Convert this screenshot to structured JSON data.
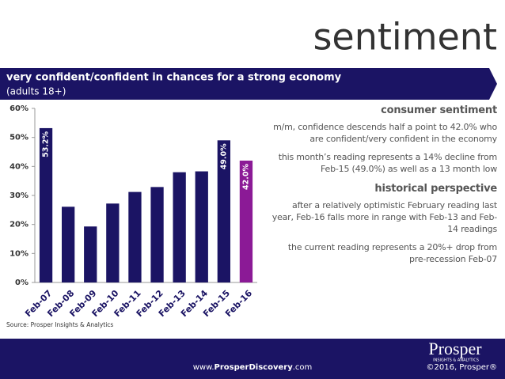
{
  "header": {
    "title": "sentiment"
  },
  "banner": {
    "title": "very confident/confident in chances for a strong economy",
    "subtitle": "(adults 18+)"
  },
  "chart_data": {
    "type": "bar",
    "categories": [
      "Feb-07",
      "Feb-08",
      "Feb-09",
      "Feb-10",
      "Feb-11",
      "Feb-12",
      "Feb-13",
      "Feb-14",
      "Feb-15",
      "Feb-16"
    ],
    "values": [
      53.2,
      26.1,
      19.3,
      27.2,
      31.2,
      32.9,
      38.0,
      38.3,
      49.0,
      42.0
    ],
    "value_labels": [
      "53.2%",
      null,
      null,
      null,
      null,
      null,
      null,
      null,
      "49.0%",
      "42.0%"
    ],
    "colors": [
      "#1b1464",
      "#1b1464",
      "#1b1464",
      "#1b1464",
      "#1b1464",
      "#1b1464",
      "#1b1464",
      "#1b1464",
      "#1b1464",
      "#8b1a96"
    ],
    "ylim": [
      0,
      60
    ],
    "yticks": [
      {
        "value": 0,
        "label": "0%"
      },
      {
        "value": 10,
        "label": "10%"
      },
      {
        "value": 20,
        "label": "20%"
      },
      {
        "value": 30,
        "label": "30%"
      },
      {
        "value": 40,
        "label": "40%"
      },
      {
        "value": 50,
        "label": "50%"
      },
      {
        "value": 60,
        "label": "60%"
      }
    ],
    "grid": false
  },
  "source": "Source: Prosper Insights & Analytics",
  "panel": {
    "sections": [
      {
        "heading": "consumer sentiment",
        "paragraphs": [
          "m/m, confidence descends half a point to 42.0% who are confident/very confident in the economy",
          "this month’s reading represents a 14% decline from Feb-15 (49.0%) as well as a 13 month low"
        ]
      },
      {
        "heading": "historical perspective",
        "paragraphs": [
          "after a relatively optimistic February reading last year, Feb-16 falls more in range with Feb-13 and Feb-14 readings",
          "the current reading represents a 20%+ drop from pre-recession Feb-07"
        ]
      }
    ]
  },
  "footer": {
    "url_prefix": "www.",
    "url_bold": "ProsperDiscovery",
    "url_suffix": ".com",
    "copyright": "©2016, Prosper®"
  },
  "logo": {
    "name": "Prosper",
    "tagline": "INSIGHTS & ANALYTICS"
  }
}
